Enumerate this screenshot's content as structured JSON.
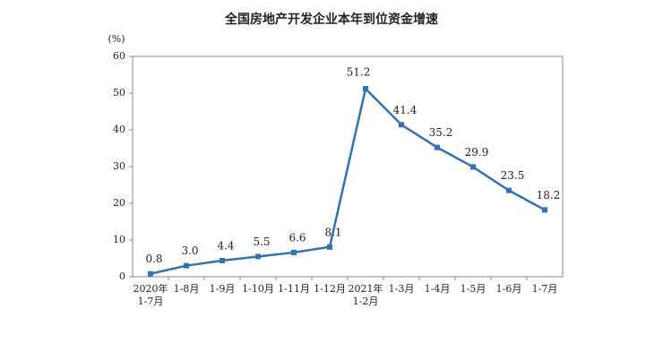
{
  "chart_data": {
    "type": "line",
    "title": "全国房地产开发企业本年到位资金增速",
    "y_label": "(%)",
    "categories": [
      "2020年\n1-7月",
      "1-8月",
      "1-9月",
      "1-10月",
      "1-11月",
      "1-12月",
      "2021年\n1-2月",
      "1-3月",
      "1-4月",
      "1-5月",
      "1-6月",
      "1-7月"
    ],
    "series": [
      {
        "color": "#2e74b5",
        "values": [
          0.8,
          3.0,
          4.4,
          5.5,
          6.6,
          8.1,
          51.2,
          41.4,
          35.2,
          29.9,
          23.5,
          18.2
        ],
        "value_labels": [
          "0.8",
          "3.0",
          "4.4",
          "5.5",
          "6.6",
          "8.1",
          "51.2",
          "41.4",
          "35.2",
          "29.9",
          "23.5",
          "18.2"
        ]
      }
    ],
    "ylim": [
      0,
      60
    ],
    "yticks": [
      0,
      10,
      20,
      30,
      40,
      50,
      60
    ],
    "grid": false
  }
}
